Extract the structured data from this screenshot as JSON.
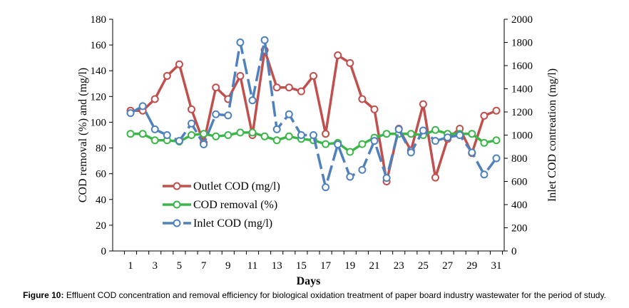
{
  "chart_data": {
    "type": "line",
    "xlabel": "Days",
    "ylabel_left": "COD removal (%) and (mg/l)",
    "ylabel_right": "Inlet COD contreation (mg/l)",
    "x": [
      1,
      2,
      3,
      4,
      5,
      6,
      7,
      8,
      9,
      10,
      11,
      12,
      13,
      14,
      15,
      16,
      17,
      18,
      19,
      20,
      21,
      22,
      23,
      24,
      25,
      26,
      27,
      28,
      29,
      30,
      31
    ],
    "x_ticks": [
      1,
      3,
      5,
      7,
      9,
      11,
      13,
      15,
      17,
      19,
      21,
      23,
      25,
      27,
      29,
      31
    ],
    "ylim_left": [
      0,
      180
    ],
    "ylim_right": [
      0,
      2000
    ],
    "y_ticks_left": [
      0,
      20,
      40,
      60,
      80,
      100,
      120,
      140,
      160,
      180
    ],
    "y_ticks_right": [
      0,
      200,
      400,
      600,
      800,
      1000,
      1200,
      1400,
      1600,
      1800,
      2000
    ],
    "series": [
      {
        "name": "Outlet COD (mg/l)",
        "axis": "left",
        "color": "#c0504d",
        "dashed": false,
        "values": [
          109,
          109,
          118,
          136,
          145,
          110,
          84,
          127,
          118,
          136,
          90,
          156,
          127,
          127,
          124,
          136,
          91,
          152,
          146,
          118,
          110,
          54,
          95,
          78,
          114,
          57,
          87,
          95,
          76,
          105,
          109
        ]
      },
      {
        "name": "COD removal (%)",
        "axis": "left",
        "color": "#3cb64a",
        "dashed": false,
        "values": [
          91,
          91,
          86,
          86,
          85,
          90,
          91,
          89,
          90,
          92,
          92,
          89,
          86,
          89,
          87,
          86,
          83,
          84,
          77,
          83,
          88,
          91,
          91,
          91,
          90,
          94,
          91,
          91,
          91,
          84,
          86
        ]
      },
      {
        "name": "Inlet COD (mg/l)",
        "axis": "right",
        "color": "#4f81bd",
        "dashed": true,
        "values": [
          1190,
          1250,
          1050,
          1000,
          950,
          1100,
          920,
          1180,
          1170,
          1800,
          1300,
          1820,
          1050,
          1180,
          1000,
          1000,
          550,
          920,
          640,
          700,
          950,
          630,
          1050,
          850,
          1040,
          950,
          980,
          1000,
          850,
          660,
          800
        ]
      }
    ],
    "legend_position": "center-left"
  },
  "caption": {
    "label": "Figure 10:",
    "text": "Effluent COD concentration and removal efficiency for biological oxidation treatment of paper board industry wastewater for the period of study."
  }
}
